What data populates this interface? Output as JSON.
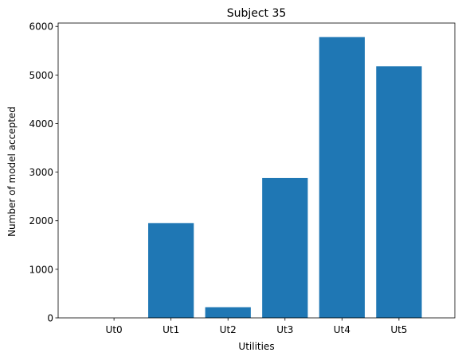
{
  "chart_data": {
    "type": "bar",
    "title": "Subject 35",
    "xlabel": "Utilities",
    "ylabel": "Number of model accepted",
    "categories": [
      "Ut0",
      "Ut1",
      "Ut2",
      "Ut3",
      "Ut4",
      "Ut5"
    ],
    "values": [
      0,
      1950,
      220,
      2880,
      5780,
      5180
    ],
    "ylim": [
      0,
      6069
    ],
    "yticks": [
      0,
      1000,
      2000,
      3000,
      4000,
      5000,
      6000
    ],
    "ytick_labels": [
      "0",
      "1000",
      "2000",
      "3000",
      "4000",
      "5000",
      "6000"
    ],
    "grid": false,
    "bar_color": "#1f77b4"
  }
}
